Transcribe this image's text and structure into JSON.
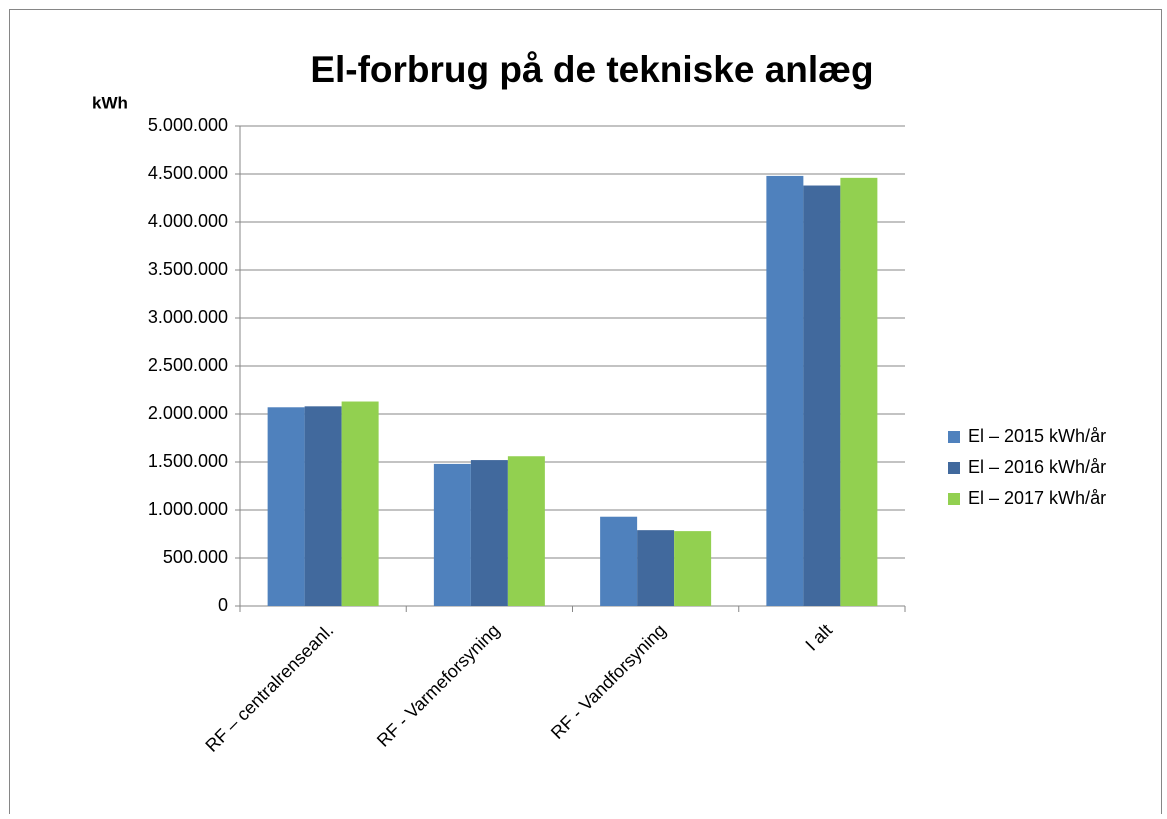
{
  "chart_data": {
    "type": "bar",
    "title": "El-forbrug på de tekniske anlæg",
    "y_axis_label": "kWh",
    "categories": [
      "RF – centralrenseanl.",
      "RF - Varmeforsyning",
      "RF - Vandforsyning",
      "I alt"
    ],
    "series": [
      {
        "name": "El – 2015 kWh/år",
        "color": "#4f81bd",
        "values": [
          2070000,
          1480000,
          930000,
          4480000
        ]
      },
      {
        "name": "El – 2016 kWh/år",
        "color": "#41699d",
        "values": [
          2080000,
          1520000,
          790000,
          4380000
        ]
      },
      {
        "name": "El – 2017 kWh/år",
        "color": "#92d050",
        "values": [
          2130000,
          1560000,
          780000,
          4460000
        ]
      }
    ],
    "ylim": [
      0,
      5000000
    ],
    "yticks": [
      0,
      {
        "value": 500000,
        "label": "500.000"
      },
      {
        "value": 1000000,
        "label": "1.000.000"
      },
      {
        "value": 1500000,
        "label": "1.500.000"
      },
      {
        "value": 2000000,
        "label": "2.000.000"
      },
      {
        "value": 2500000,
        "label": "2.500.000"
      },
      {
        "value": 3000000,
        "label": "3.000.000"
      },
      {
        "value": 3500000,
        "label": "3.500.000"
      },
      {
        "value": 4000000,
        "label": "4.000.000"
      },
      {
        "value": 4500000,
        "label": "4.500.000"
      },
      {
        "value": 5000000,
        "label": "5.000.000"
      }
    ],
    "grid": true,
    "legend": "right"
  }
}
